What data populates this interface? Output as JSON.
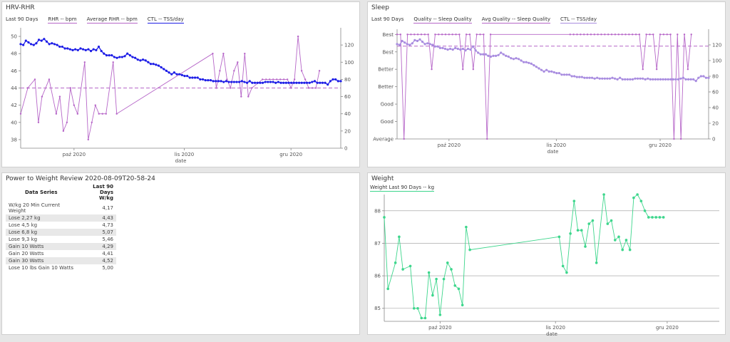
{
  "panels": {
    "hrv": {
      "title": "HRV-RHR",
      "legend_head": "Last 90 Days",
      "legend": [
        "RHR -- bpm",
        "Average RHR -- bpm",
        "CTL -- TSS/day"
      ]
    },
    "sleep": {
      "title": "Sleep",
      "legend_head": "Last 90 Days",
      "legend": [
        "Quality -- Sleep Quality",
        "Avg Quality -- Sleep Quality",
        "CTL -- TSS/day"
      ]
    },
    "power": {
      "title": "Power to Weight Review 2020-08-09T20-58-24",
      "col_header": "Data Series",
      "col2_header_l1": "Last 90 Days",
      "col2_header_l2": "W/kg",
      "rows": [
        {
          "label": "W/kg 20 Min Current Weight",
          "value": "4,17"
        },
        {
          "label": "Lose 2,27 kg",
          "value": "4,43"
        },
        {
          "label": "Lose 4,5 kg",
          "value": "4,73"
        },
        {
          "label": "Lose 6,8 kg",
          "value": "5,07"
        },
        {
          "label": "Lose 9,3 kg",
          "value": "5,46"
        },
        {
          "label": "Gain 10 Watts",
          "value": "4,29"
        },
        {
          "label": "Gain 20 Watts",
          "value": "4,41"
        },
        {
          "label": "Gain 30 Watts",
          "value": "4,52"
        },
        {
          "label": "Lose 10 lbs Gain 10 Watts",
          "value": "5,00"
        }
      ]
    },
    "weight": {
      "title": "Weight",
      "legend": [
        "Weight  Last 90 Days  -- kg"
      ]
    }
  },
  "chart_data": [
    {
      "id": "hrv",
      "type": "line",
      "xlabel": "date",
      "x_ticks": [
        {
          "label": "paź 2020",
          "day": 18
        },
        {
          "label": "lis 2020",
          "day": 49
        },
        {
          "label": "gru 2020",
          "day": 79
        }
      ],
      "x_range": [
        3,
        93
      ],
      "y_left": {
        "range": [
          37,
          51
        ],
        "ticks": [
          38,
          40,
          42,
          44,
          46,
          48,
          50
        ]
      },
      "y_right": {
        "range": [
          0,
          140
        ],
        "ticks": [
          0,
          20,
          40,
          60,
          80,
          100,
          120
        ]
      },
      "series": [
        {
          "name": "RHR -- bpm",
          "axis": "left",
          "color": "#b666c8",
          "x": [
            3,
            5,
            7,
            8,
            9,
            11,
            13,
            14,
            15,
            16,
            17,
            18,
            19,
            21,
            22,
            23,
            24,
            25,
            26,
            27,
            29,
            30,
            57,
            58,
            59,
            60,
            61,
            62,
            63,
            64,
            65,
            66,
            67,
            68,
            71,
            72,
            73,
            74,
            75,
            76,
            77,
            78,
            79,
            80,
            81,
            82,
            83,
            84,
            85,
            86,
            87
          ],
          "values": [
            41,
            44,
            45,
            40,
            43,
            45,
            41,
            43,
            39,
            40,
            44,
            42,
            41,
            47,
            38,
            40,
            42,
            41,
            41,
            41,
            47,
            41,
            48,
            44,
            46,
            48,
            45,
            44,
            46,
            47,
            43,
            48,
            43,
            44,
            45,
            45,
            45,
            45,
            45,
            45,
            45,
            45,
            44,
            45,
            50,
            46,
            45,
            44,
            44,
            44,
            46
          ]
        },
        {
          "name": "Average RHR -- bpm",
          "axis": "left",
          "color": "#b666c8",
          "dashed": true,
          "x": [
            3,
            93
          ],
          "values": [
            44,
            44
          ]
        },
        {
          "name": "CTL -- TSS/day",
          "axis": "right",
          "color": "#1e1ee6",
          "x_start": 3,
          "x_end": 93,
          "values": [
            121,
            120,
            125,
            123,
            121,
            120,
            122,
            126,
            125,
            127,
            124,
            121,
            122,
            121,
            120,
            118,
            118,
            116,
            116,
            115,
            114,
            115,
            114,
            116,
            115,
            114,
            115,
            113,
            115,
            114,
            118,
            113,
            110,
            108,
            108,
            108,
            106,
            105,
            106,
            106,
            107,
            110,
            108,
            106,
            105,
            103,
            102,
            103,
            102,
            100,
            98,
            98,
            97,
            96,
            94,
            92,
            90,
            88,
            86,
            88,
            86,
            86,
            85,
            84,
            84,
            82,
            82,
            82,
            82,
            80,
            80,
            79,
            79,
            79,
            78,
            78,
            78,
            78,
            77,
            78,
            77,
            77,
            77,
            77,
            77,
            78,
            77,
            76,
            78,
            76,
            76,
            76,
            76,
            76,
            77,
            77,
            77,
            77,
            76,
            77,
            76,
            76,
            76,
            76,
            76,
            76,
            76,
            76,
            76,
            76,
            76,
            76,
            77,
            78,
            76,
            76,
            76,
            76,
            74,
            78,
            80,
            80,
            78,
            78
          ]
        }
      ]
    },
    {
      "id": "sleep",
      "type": "line",
      "xlabel": "date",
      "x_ticks": [
        {
          "label": "paź 2020",
          "day": 18
        },
        {
          "label": "lis 2020",
          "day": 49
        },
        {
          "label": "gru 2020",
          "day": 79
        }
      ],
      "x_range": [
        3,
        93
      ],
      "y_left": {
        "range": [
          0,
          6.3
        ],
        "tick_labels": [
          "Average",
          "Good",
          "Good",
          "Better",
          "Better",
          "Best",
          "Best"
        ],
        "ticks": [
          0,
          1,
          2,
          3,
          4,
          5,
          6
        ]
      },
      "y_right": {
        "range": [
          0,
          140
        ],
        "ticks": [
          0,
          20,
          40,
          60,
          80,
          100,
          120
        ]
      },
      "series": [
        {
          "name": "Quality -- Sleep Quality",
          "axis": "left",
          "color": "#b666c8",
          "x": [
            3,
            4,
            5,
            6,
            7,
            8,
            9,
            10,
            11,
            12,
            13,
            14,
            15,
            16,
            17,
            18,
            19,
            20,
            21,
            22,
            23,
            24,
            25,
            26,
            27,
            28,
            29,
            30,
            53,
            54,
            55,
            56,
            57,
            58,
            59,
            60,
            61,
            62,
            63,
            64,
            65,
            66,
            67,
            68,
            69,
            70,
            71,
            72,
            73,
            74,
            75,
            76,
            77,
            78,
            79,
            80,
            81,
            82,
            83,
            84,
            85,
            86,
            87,
            88
          ],
          "values": [
            6,
            6,
            0,
            6,
            6,
            6,
            6,
            6,
            6,
            6,
            4,
            6,
            6,
            6,
            6,
            6,
            6,
            6,
            6,
            4,
            6,
            6,
            4,
            6,
            6,
            6,
            0,
            6,
            6,
            6,
            6,
            6,
            6,
            6,
            6,
            6,
            6,
            6,
            6,
            6,
            6,
            6,
            6,
            6,
            6,
            6,
            6,
            6,
            6,
            4,
            6,
            6,
            6,
            4,
            6,
            6,
            6,
            6,
            0,
            6,
            0,
            6,
            4,
            6
          ]
        },
        {
          "name": "Avg Quality -- Sleep Quality",
          "axis": "left",
          "color": "#b666c8",
          "dashed": true,
          "x": [
            3,
            93
          ],
          "values": [
            5.33,
            5.33
          ]
        },
        {
          "name": "CTL -- TSS/day",
          "axis": "right",
          "color": "#a98de0",
          "x_start": 3,
          "x_end": 93,
          "values": [
            121,
            120,
            125,
            123,
            121,
            120,
            122,
            126,
            125,
            127,
            124,
            121,
            122,
            121,
            120,
            118,
            118,
            116,
            116,
            115,
            114,
            115,
            114,
            116,
            115,
            114,
            115,
            113,
            115,
            114,
            118,
            113,
            110,
            108,
            108,
            108,
            106,
            105,
            106,
            106,
            107,
            110,
            108,
            106,
            105,
            103,
            102,
            103,
            102,
            100,
            98,
            98,
            97,
            96,
            94,
            92,
            90,
            88,
            86,
            88,
            86,
            86,
            85,
            84,
            84,
            82,
            82,
            82,
            82,
            80,
            80,
            79,
            79,
            79,
            78,
            78,
            78,
            78,
            77,
            78,
            77,
            77,
            77,
            77,
            77,
            78,
            77,
            76,
            78,
            76,
            76,
            76,
            76,
            76,
            77,
            77,
            77,
            77,
            76,
            77,
            76,
            76,
            76,
            76,
            76,
            76,
            76,
            76,
            76,
            76,
            76,
            76,
            77,
            78,
            76,
            76,
            76,
            76,
            74,
            78,
            80,
            80,
            78,
            78
          ]
        }
      ]
    },
    {
      "id": "weight",
      "type": "line",
      "xlabel": "date",
      "x_ticks": [
        {
          "label": "paź 2020",
          "day": 18
        },
        {
          "label": "lis 2020",
          "day": 49
        },
        {
          "label": "gru 2020",
          "day": 79
        }
      ],
      "x_range": [
        3,
        93
      ],
      "y_left": {
        "range": [
          84.6,
          88.5
        ],
        "ticks": [
          85,
          86,
          87,
          88
        ]
      },
      "series": [
        {
          "name": "Weight",
          "axis": "left",
          "color": "#3dd68c",
          "x": [
            3,
            4,
            6,
            7,
            8,
            10,
            11,
            12,
            13,
            14,
            15,
            16,
            17,
            18,
            19,
            20,
            21,
            22,
            23,
            24,
            25,
            26,
            50,
            51,
            52,
            53,
            54,
            55,
            56,
            57,
            58,
            59,
            60,
            62,
            63,
            64,
            65,
            66,
            67,
            68,
            69,
            70,
            71,
            72,
            73,
            74,
            75,
            76,
            77,
            78
          ],
          "values": [
            87.8,
            85.6,
            86.4,
            87.2,
            86.2,
            86.3,
            85.0,
            85.0,
            84.7,
            84.7,
            86.1,
            85.4,
            85.9,
            84.8,
            85.9,
            86.4,
            86.2,
            85.7,
            85.6,
            85.1,
            87.5,
            86.8,
            87.2,
            86.3,
            86.1,
            87.3,
            88.3,
            87.4,
            87.4,
            86.9,
            87.6,
            87.7,
            86.4,
            88.5,
            87.6,
            87.7,
            87.1,
            87.2,
            86.8,
            87.1,
            86.8,
            88.4,
            88.5,
            88.3,
            88.0,
            87.8,
            87.8,
            87.8,
            87.8,
            87.8
          ]
        }
      ]
    }
  ]
}
